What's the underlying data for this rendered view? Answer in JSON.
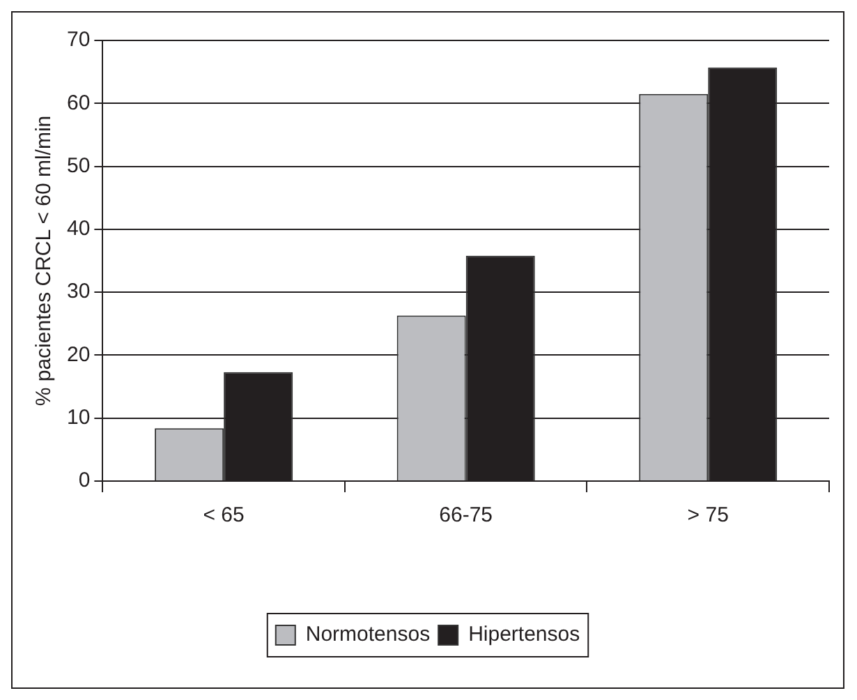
{
  "chart_data": {
    "type": "bar",
    "ylabel": "% pacientes CRCL < 60 ml/min",
    "categories": [
      "< 65",
      "66-75",
      "> 75"
    ],
    "series": [
      {
        "name": "Normotensos",
        "color": "#bcbdc1",
        "values": [
          8.4,
          26.3,
          61.5
        ]
      },
      {
        "name": "Hipertensos",
        "color": "#231f20",
        "values": [
          17.3,
          35.8,
          65.7
        ]
      }
    ],
    "ylim": [
      0,
      70
    ],
    "yticks": [
      0,
      10,
      20,
      30,
      40,
      50,
      60,
      70
    ],
    "grid": "y",
    "legend": "bottom"
  }
}
